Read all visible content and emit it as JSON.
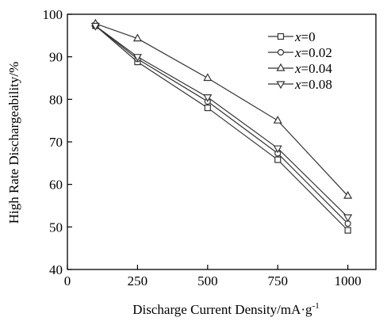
{
  "chart_data": {
    "type": "line",
    "title": "",
    "xlabel": "Discharge Current Density/mA·g",
    "xlabel_superscript": "-1",
    "ylabel": "High Rate Dischargeability/%",
    "xlim": [
      0,
      1100
    ],
    "ylim": [
      40,
      100
    ],
    "x_ticks": [
      0,
      250,
      500,
      750,
      1000
    ],
    "y_ticks": [
      40,
      50,
      60,
      70,
      80,
      90,
      100
    ],
    "grid": false,
    "legend_position": "top-right",
    "line_color": "#333333",
    "series": [
      {
        "name": "x=0",
        "var": "x",
        "rest": "=0",
        "marker": "square",
        "x": [
          100,
          250,
          500,
          750,
          1000
        ],
        "values": [
          97.3,
          88.8,
          78.0,
          65.8,
          49.2
        ]
      },
      {
        "name": "x=0.02",
        "var": "x",
        "rest": "=0.02",
        "marker": "circle",
        "x": [
          100,
          250,
          500,
          750,
          1000
        ],
        "values": [
          97.3,
          89.5,
          79.5,
          67.3,
          50.8
        ]
      },
      {
        "name": "x=0.04",
        "var": "x",
        "rest": "=0.04",
        "marker": "triangle-up",
        "x": [
          100,
          250,
          500,
          750,
          1000
        ],
        "values": [
          97.8,
          94.3,
          85.0,
          75.0,
          57.3
        ]
      },
      {
        "name": "x=0.08",
        "var": "x",
        "rest": "=0.08",
        "marker": "triangle-down",
        "x": [
          100,
          250,
          500,
          750,
          1000
        ],
        "values": [
          97.3,
          90.0,
          80.5,
          68.5,
          52.3
        ]
      }
    ]
  }
}
